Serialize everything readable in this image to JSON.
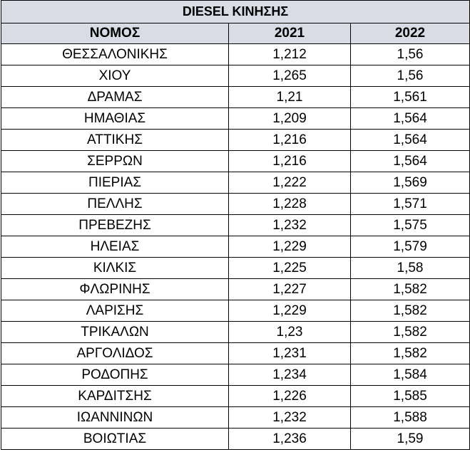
{
  "table": {
    "title": "DIESEL ΚΙΝΗΣΗΣ",
    "headers": [
      "ΝΟΜΟΣ",
      "2021",
      "2022"
    ],
    "rows": [
      [
        "ΘΕΣΣΑΛΟΝΙΚΗΣ",
        "1,212",
        "1,56"
      ],
      [
        "ΧΙΟΥ",
        "1,265",
        "1,56"
      ],
      [
        "ΔΡΑΜΑΣ",
        "1,21",
        "1,561"
      ],
      [
        "ΗΜΑΘΙΑΣ",
        "1,209",
        "1,564"
      ],
      [
        "ΑΤΤΙΚΗΣ",
        "1,216",
        "1,564"
      ],
      [
        "ΣΕΡΡΩΝ",
        "1,216",
        "1,564"
      ],
      [
        "ΠΙΕΡΙΑΣ",
        "1,222",
        "1,569"
      ],
      [
        "ΠΕΛΛΗΣ",
        "1,228",
        "1,571"
      ],
      [
        "ΠΡΕΒΕΖΗΣ",
        "1,232",
        "1,575"
      ],
      [
        "ΗΛΕΙΑΣ",
        "1,229",
        "1,579"
      ],
      [
        "ΚΙΛΚΙΣ",
        "1,225",
        "1,58"
      ],
      [
        "ΦΛΩΡΙΝΗΣ",
        "1,227",
        "1,582"
      ],
      [
        "ΛΑΡΙΣΗΣ",
        "1,229",
        "1,582"
      ],
      [
        "ΤΡΙΚΑΛΩΝ",
        "1,23",
        "1,582"
      ],
      [
        "ΑΡΓΟΛΙΔΟΣ",
        "1,231",
        "1,582"
      ],
      [
        "ΡΟΔΟΠΗΣ",
        "1,234",
        "1,584"
      ],
      [
        "ΚΑΡΔΙΤΣΗΣ",
        "1,226",
        "1,585"
      ],
      [
        "ΙΩΑΝΝΙΝΩΝ",
        "1,232",
        "1,588"
      ],
      [
        "ΒΟΙΩΤΙΑΣ",
        "1,236",
        "1,59"
      ]
    ]
  },
  "colors": {
    "header_fill": "#d9dce4",
    "grid_line": "#000000"
  }
}
